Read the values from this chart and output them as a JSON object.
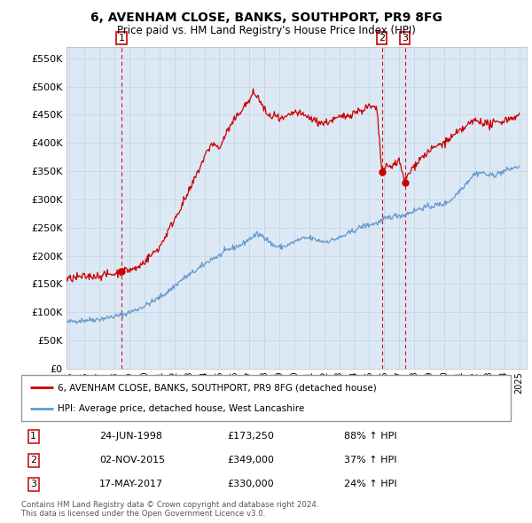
{
  "title": "6, AVENHAM CLOSE, BANKS, SOUTHPORT, PR9 8FG",
  "subtitle": "Price paid vs. HM Land Registry's House Price Index (HPI)",
  "ylim": [
    0,
    570000
  ],
  "yticks": [
    0,
    50000,
    100000,
    150000,
    200000,
    250000,
    300000,
    350000,
    400000,
    450000,
    500000,
    550000
  ],
  "xlim_start": 1994.8,
  "xlim_end": 2025.5,
  "sale_color": "#cc0000",
  "hpi_color": "#6699cc",
  "grid_color": "#c8d8e8",
  "bg_color": "#dce9f5",
  "plot_bg": "#dce9f5",
  "outer_bg": "#ffffff",
  "sale_dates": [
    1998.48,
    2015.84,
    2017.37
  ],
  "sale_prices": [
    173250,
    349000,
    330000
  ],
  "sale_labels": [
    "1",
    "2",
    "3"
  ],
  "legend_sale_label": "6, AVENHAM CLOSE, BANKS, SOUTHPORT, PR9 8FG (detached house)",
  "legend_hpi_label": "HPI: Average price, detached house, West Lancashire",
  "table_rows": [
    {
      "num": "1",
      "date": "24-JUN-1998",
      "price": "£173,250",
      "change": "88% ↑ HPI"
    },
    {
      "num": "2",
      "date": "02-NOV-2015",
      "price": "£349,000",
      "change": "37% ↑ HPI"
    },
    {
      "num": "3",
      "date": "17-MAY-2017",
      "price": "£330,000",
      "change": "24% ↑ HPI"
    }
  ],
  "footnote": "Contains HM Land Registry data © Crown copyright and database right 2024.\nThis data is licensed under the Open Government Licence v3.0."
}
